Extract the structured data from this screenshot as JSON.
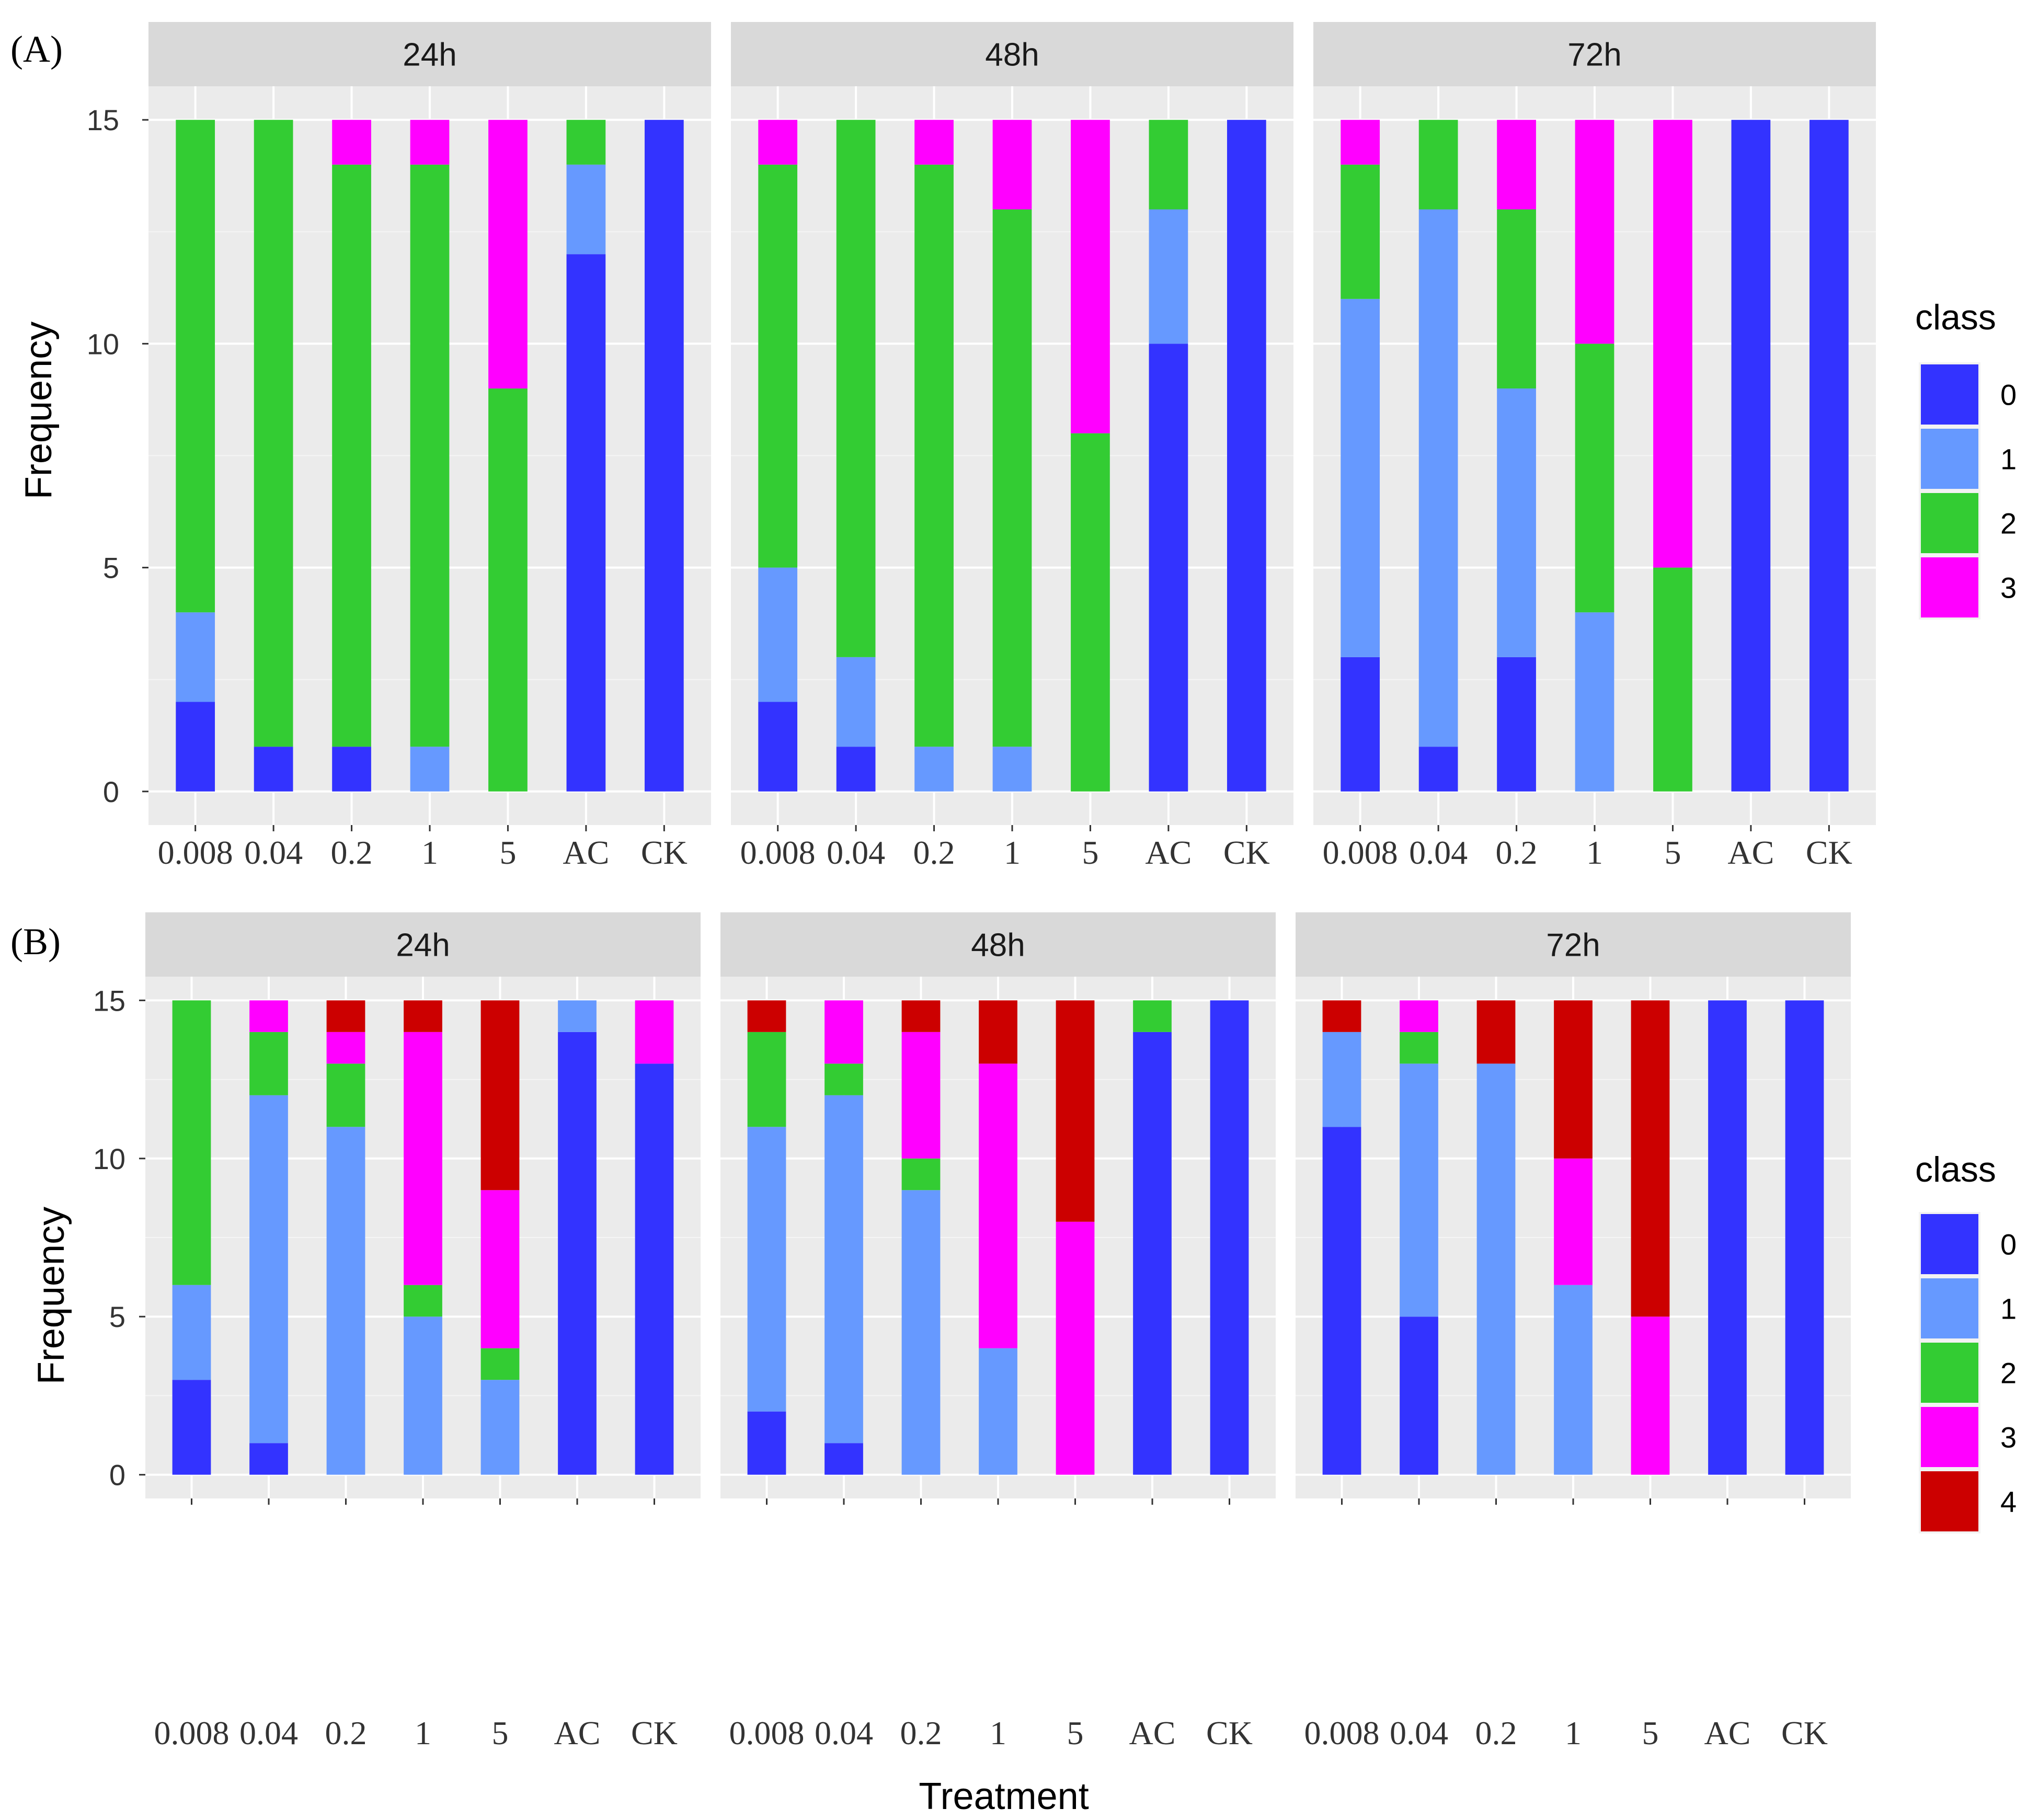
{
  "figure": {
    "xlabel": "Treatment",
    "ylabel": "Frequency",
    "facet_labels": [
      "24h",
      "48h",
      "72h"
    ],
    "categories": [
      "0.008",
      "0.04",
      "0.2",
      "1",
      "5",
      "AC",
      "CK"
    ],
    "y_ticks": [
      "0",
      "5",
      "10",
      "15"
    ],
    "legend_title": "class"
  },
  "chart_data": [
    {
      "type": "bar",
      "panel_label": "(A)",
      "stacked": true,
      "facets": [
        "24h",
        "48h",
        "72h"
      ],
      "categories": [
        "0.008",
        "0.04",
        "0.2",
        "1",
        "5",
        "AC",
        "CK"
      ],
      "xlabel": "",
      "ylabel": "Frequency",
      "ylim": [
        0,
        15
      ],
      "legend_title": "class",
      "legend_position": "right",
      "classes": [
        {
          "name": "0",
          "color": "#3333ff"
        },
        {
          "name": "1",
          "color": "#6699ff"
        },
        {
          "name": "2",
          "color": "#33cc33"
        },
        {
          "name": "3",
          "color": "#ff00ff"
        }
      ],
      "series": {
        "24h": {
          "0": [
            2,
            1,
            1,
            0,
            0,
            12,
            15
          ],
          "1": [
            2,
            0,
            0,
            1,
            0,
            2,
            0
          ],
          "2": [
            11,
            14,
            13,
            13,
            9,
            1,
            0
          ],
          "3": [
            0,
            0,
            1,
            1,
            6,
            0,
            0
          ]
        },
        "48h": {
          "0": [
            2,
            1,
            0,
            0,
            0,
            10,
            15
          ],
          "1": [
            3,
            2,
            1,
            1,
            0,
            3,
            0
          ],
          "2": [
            9,
            12,
            13,
            12,
            8,
            2,
            0
          ],
          "3": [
            1,
            0,
            1,
            2,
            7,
            0,
            0
          ]
        },
        "72h": {
          "0": [
            3,
            1,
            3,
            0,
            0,
            15,
            15
          ],
          "1": [
            8,
            12,
            6,
            4,
            0,
            0,
            0
          ],
          "2": [
            3,
            2,
            4,
            6,
            5,
            0,
            0
          ],
          "3": [
            1,
            0,
            2,
            5,
            10,
            0,
            0
          ]
        }
      }
    },
    {
      "type": "bar",
      "panel_label": "(B)",
      "stacked": true,
      "facets": [
        "24h",
        "48h",
        "72h"
      ],
      "categories": [
        "0.008",
        "0.04",
        "0.2",
        "1",
        "5",
        "AC",
        "CK"
      ],
      "xlabel": "Treatment",
      "ylabel": "Frequency",
      "ylim": [
        0,
        15
      ],
      "legend_title": "class",
      "legend_position": "right",
      "classes": [
        {
          "name": "0",
          "color": "#3333ff"
        },
        {
          "name": "1",
          "color": "#6699ff"
        },
        {
          "name": "2",
          "color": "#33cc33"
        },
        {
          "name": "3",
          "color": "#ff00ff"
        },
        {
          "name": "4",
          "color": "#cc0000"
        }
      ],
      "series": {
        "24h": {
          "0": [
            3,
            1,
            0,
            0,
            0,
            14,
            13
          ],
          "1": [
            3,
            11,
            11,
            5,
            3,
            1,
            0
          ],
          "2": [
            9,
            2,
            2,
            1,
            1,
            0,
            0
          ],
          "3": [
            0,
            1,
            1,
            8,
            5,
            0,
            2
          ],
          "4": [
            0,
            0,
            1,
            1,
            6,
            0,
            0
          ]
        },
        "48h": {
          "0": [
            2,
            1,
            0,
            0,
            0,
            14,
            15
          ],
          "1": [
            9,
            11,
            9,
            4,
            0,
            0,
            0
          ],
          "2": [
            3,
            1,
            1,
            0,
            0,
            1,
            0
          ],
          "3": [
            0,
            2,
            4,
            9,
            8,
            0,
            0
          ],
          "4": [
            1,
            0,
            1,
            2,
            7,
            0,
            0
          ]
        },
        "72h": {
          "0": [
            11,
            5,
            0,
            0,
            0,
            15,
            15
          ],
          "1": [
            3,
            8,
            13,
            6,
            0,
            0,
            0
          ],
          "2": [
            0,
            1,
            0,
            0,
            0,
            0,
            0
          ],
          "3": [
            0,
            1,
            0,
            4,
            5,
            0,
            0
          ],
          "4": [
            1,
            0,
            2,
            5,
            10,
            0,
            0
          ]
        }
      }
    }
  ]
}
